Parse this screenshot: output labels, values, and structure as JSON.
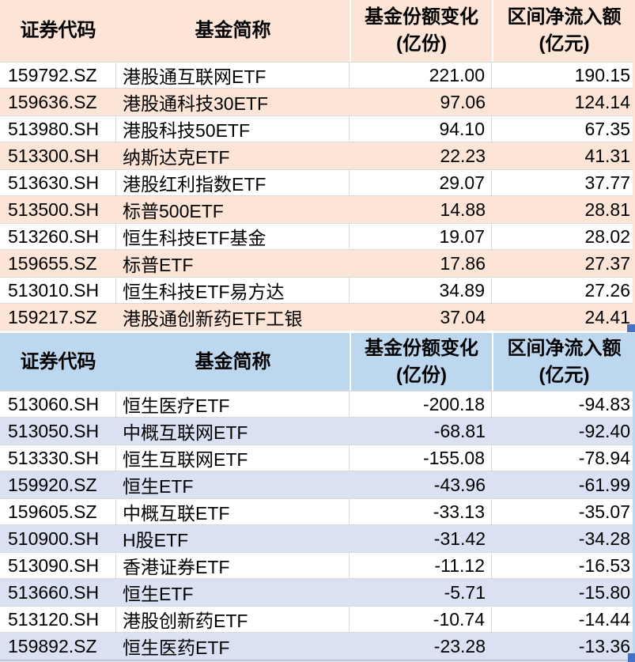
{
  "colors": {
    "inflow_header_bg": "#FCE4D6",
    "inflow_row_band_bg": "#FCE4D6",
    "outflow_header_bg": "#BDD7EE",
    "outflow_row_band_bg": "#D9E1F2",
    "grid_line": "#D9D9D9",
    "selection_handle": "#4472C4",
    "text": "#000000"
  },
  "columns": {
    "code": "证券代码",
    "name": "基金简称",
    "share_change_line1": "基金份额变化",
    "share_change_line2": "(亿份)",
    "net_inflow_line1": "区间净流入额",
    "net_inflow_line2": "(亿元)"
  },
  "tables": [
    {
      "id": "inflow",
      "rows": [
        {
          "code": "159792.SZ",
          "name": "港股通互联网ETF",
          "share_change": "221.00",
          "net_inflow": "190.15"
        },
        {
          "code": "159636.SZ",
          "name": "港股通科技30ETF",
          "share_change": "97.06",
          "net_inflow": "124.14"
        },
        {
          "code": "513980.SH",
          "name": "港股科技50ETF",
          "share_change": "94.10",
          "net_inflow": "67.35"
        },
        {
          "code": "513300.SH",
          "name": "纳斯达克ETF",
          "share_change": "22.23",
          "net_inflow": "41.31"
        },
        {
          "code": "513630.SH",
          "name": "港股红利指数ETF",
          "share_change": "29.07",
          "net_inflow": "37.77"
        },
        {
          "code": "513500.SH",
          "name": "标普500ETF",
          "share_change": "14.88",
          "net_inflow": "28.81"
        },
        {
          "code": "513260.SH",
          "name": "恒生科技ETF基金",
          "share_change": "19.07",
          "net_inflow": "28.02"
        },
        {
          "code": "159655.SZ",
          "name": "标普ETF",
          "share_change": "17.86",
          "net_inflow": "27.37"
        },
        {
          "code": "513010.SH",
          "name": "恒生科技ETF易方达",
          "share_change": "34.89",
          "net_inflow": "27.26"
        },
        {
          "code": "159217.SZ",
          "name": "港股通创新药ETF工银",
          "share_change": "37.04",
          "net_inflow": "24.41"
        }
      ]
    },
    {
      "id": "outflow",
      "rows": [
        {
          "code": "513060.SH",
          "name": "恒生医疗ETF",
          "share_change": "-200.18",
          "net_inflow": "-94.83"
        },
        {
          "code": "513050.SH",
          "name": "中概互联网ETF",
          "share_change": "-68.81",
          "net_inflow": "-92.40"
        },
        {
          "code": "513330.SH",
          "name": "恒生互联网ETF",
          "share_change": "-155.08",
          "net_inflow": "-78.94"
        },
        {
          "code": "159920.SZ",
          "name": "恒生ETF",
          "share_change": "-43.96",
          "net_inflow": "-61.99"
        },
        {
          "code": "159605.SZ",
          "name": "中概互联ETF",
          "share_change": "-33.13",
          "net_inflow": "-35.07"
        },
        {
          "code": "510900.SH",
          "name": "H股ETF",
          "share_change": "-31.42",
          "net_inflow": "-34.28"
        },
        {
          "code": "513090.SH",
          "name": "香港证券ETF",
          "share_change": "-11.12",
          "net_inflow": "-16.53"
        },
        {
          "code": "513660.SH",
          "name": "恒生ETF",
          "share_change": "-5.71",
          "net_inflow": "-15.80"
        },
        {
          "code": "513120.SH",
          "name": "港股创新药ETF",
          "share_change": "-10.74",
          "net_inflow": "-14.44"
        },
        {
          "code": "159892.SZ",
          "name": "恒生医药ETF",
          "share_change": "-23.28",
          "net_inflow": "-13.36"
        }
      ]
    }
  ]
}
